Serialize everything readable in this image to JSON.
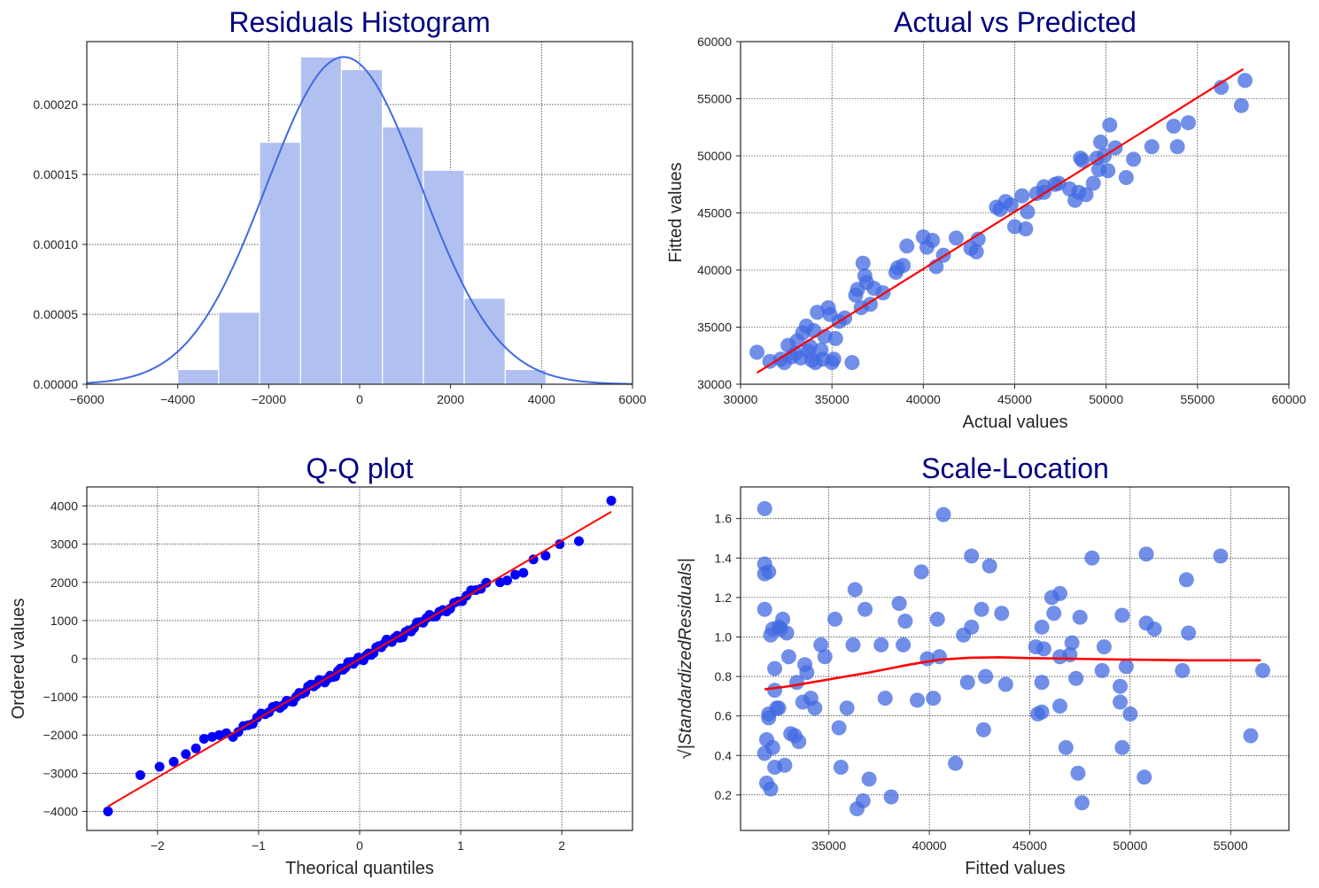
{
  "figure": {
    "title_color": "#000080",
    "scatter_color": "#4169e1",
    "qq_point_color": "#0000ff",
    "fit_line_color": "#ff0000"
  },
  "chart_data": [
    {
      "id": "hist",
      "type": "bar",
      "title": "Residuals Histogram",
      "xlabel": "",
      "ylabel": "",
      "xlim": [
        -6000,
        6000
      ],
      "ylim": [
        0,
        0.000245
      ],
      "xticks": [
        -6000,
        -4000,
        -2000,
        0,
        2000,
        4000,
        6000
      ],
      "xtick_labels": [
        "−6000",
        "−4000",
        "−2000",
        "0",
        "2000",
        "4000",
        "6000"
      ],
      "yticks": [
        0,
        5e-05,
        0.0001,
        0.00015,
        0.0002
      ],
      "ytick_labels": [
        "0.00000",
        "0.00005",
        "0.00010",
        "0.00015",
        "0.00020"
      ],
      "bin_edges": [
        -4000,
        -3100,
        -2200,
        -1300,
        -400,
        500,
        1400,
        2300,
        3200,
        4100
      ],
      "values": [
        1.05e-05,
        5.15e-05,
        0.000173,
        0.000234,
        0.000225,
        0.000184,
        0.000153,
        6.15e-05,
        1.05e-05
      ],
      "bar_color": "#b0c0f0",
      "kde": {
        "mean": -350,
        "sd": 1700,
        "peak": 0.000234,
        "color": "#4169e1"
      },
      "grid": true
    },
    {
      "id": "avp",
      "type": "scatter",
      "title": "Actual vs Predicted",
      "xlabel": "Actual values",
      "ylabel": "Fitted values",
      "xlim": [
        30000,
        60000
      ],
      "ylim": [
        30000,
        60000
      ],
      "xticks": [
        30000,
        35000,
        40000,
        45000,
        50000,
        55000,
        60000
      ],
      "xtick_labels": [
        "30000",
        "35000",
        "40000",
        "45000",
        "50000",
        "55000",
        "60000"
      ],
      "yticks": [
        30000,
        35000,
        40000,
        45000,
        50000,
        55000,
        60000
      ],
      "ytick_labels": [
        "30000",
        "35000",
        "40000",
        "45000",
        "50000",
        "55000",
        "60000"
      ],
      "points": [
        [
          30900,
          32800
        ],
        [
          31600,
          32000
        ],
        [
          32200,
          32200
        ],
        [
          32400,
          31900
        ],
        [
          32600,
          33400
        ],
        [
          32800,
          32400
        ],
        [
          33000,
          32700
        ],
        [
          33100,
          33800
        ],
        [
          33300,
          32300
        ],
        [
          33400,
          34500
        ],
        [
          33600,
          35100
        ],
        [
          33700,
          32900
        ],
        [
          33800,
          33300
        ],
        [
          33900,
          32100
        ],
        [
          34000,
          34700
        ],
        [
          34100,
          31900
        ],
        [
          34200,
          36300
        ],
        [
          34400,
          33000
        ],
        [
          34500,
          32200
        ],
        [
          34600,
          34200
        ],
        [
          34800,
          36700
        ],
        [
          34900,
          36100
        ],
        [
          35000,
          31900
        ],
        [
          35100,
          32200
        ],
        [
          35200,
          34000
        ],
        [
          35400,
          35500
        ],
        [
          35700,
          35800
        ],
        [
          36100,
          31900
        ],
        [
          36300,
          37800
        ],
        [
          36400,
          38300
        ],
        [
          36600,
          36700
        ],
        [
          36700,
          40600
        ],
        [
          36800,
          39500
        ],
        [
          36900,
          38900
        ],
        [
          37100,
          37000
        ],
        [
          37300,
          38400
        ],
        [
          37800,
          38000
        ],
        [
          38500,
          39800
        ],
        [
          38600,
          40200
        ],
        [
          38900,
          40400
        ],
        [
          39100,
          42100
        ],
        [
          40000,
          42900
        ],
        [
          40200,
          42000
        ],
        [
          40500,
          42600
        ],
        [
          40700,
          40300
        ],
        [
          41100,
          41300
        ],
        [
          41800,
          42800
        ],
        [
          42600,
          41900
        ],
        [
          42900,
          41600
        ],
        [
          43000,
          42700
        ],
        [
          44000,
          45500
        ],
        [
          44200,
          45300
        ],
        [
          44500,
          46000
        ],
        [
          44800,
          45700
        ],
        [
          45000,
          43800
        ],
        [
          45400,
          46500
        ],
        [
          45600,
          43600
        ],
        [
          45700,
          45100
        ],
        [
          46200,
          46700
        ],
        [
          46600,
          46800
        ],
        [
          46600,
          47300
        ],
        [
          47200,
          47500
        ],
        [
          47400,
          47600
        ],
        [
          48000,
          47100
        ],
        [
          48300,
          46100
        ],
        [
          48500,
          46800
        ],
        [
          48600,
          49800
        ],
        [
          48700,
          49600
        ],
        [
          48900,
          46600
        ],
        [
          49300,
          47600
        ],
        [
          49500,
          49800
        ],
        [
          49600,
          48800
        ],
        [
          49700,
          51200
        ],
        [
          49900,
          50000
        ],
        [
          50100,
          48700
        ],
        [
          50200,
          52700
        ],
        [
          50500,
          50700
        ],
        [
          51100,
          48100
        ],
        [
          51500,
          49700
        ],
        [
          52500,
          50800
        ],
        [
          53700,
          52600
        ],
        [
          53900,
          50800
        ],
        [
          54500,
          52900
        ],
        [
          56300,
          56000
        ],
        [
          57400,
          54400
        ],
        [
          57600,
          56600
        ]
      ],
      "fit_line": {
        "x": [
          30900,
          57500
        ],
        "y": [
          31000,
          57600
        ]
      },
      "grid": true
    },
    {
      "id": "qq",
      "type": "scatter",
      "title": "Q-Q plot",
      "xlabel": "Theorical quantiles",
      "ylabel": "Ordered values",
      "xlim": [
        -2.7,
        2.7
      ],
      "ylim": [
        -4500,
        4500
      ],
      "xticks": [
        -2,
        -1,
        0,
        1,
        2
      ],
      "xtick_labels": [
        "−2",
        "−1",
        "0",
        "1",
        "2"
      ],
      "yticks": [
        -4000,
        -3000,
        -2000,
        -1000,
        0,
        1000,
        2000,
        3000,
        4000
      ],
      "ytick_labels": [
        "−4000",
        "−3000",
        "−2000",
        "−1000",
        "0",
        "1000",
        "2000",
        "3000",
        "4000"
      ],
      "n_points": 100,
      "residual_quantile_fn": {
        "slope": 1550,
        "intercept": -10
      },
      "anchor_points": [
        [
          -2.49,
          -4000
        ],
        [
          -2.17,
          -3050
        ],
        [
          -1.98,
          -2830
        ],
        [
          -1.84,
          -2700
        ],
        [
          -1.72,
          -2500
        ],
        [
          -1.62,
          -2350
        ],
        [
          -1.54,
          -2100
        ],
        [
          -1.46,
          -2050
        ],
        [
          -1.39,
          -2000
        ],
        [
          -1.32,
          -1950
        ],
        [
          1.39,
          2000
        ],
        [
          1.46,
          2050
        ],
        [
          1.54,
          2200
        ],
        [
          1.62,
          2250
        ],
        [
          1.72,
          2600
        ],
        [
          1.84,
          2700
        ],
        [
          1.98,
          3000
        ],
        [
          2.17,
          3080
        ],
        [
          2.49,
          4140
        ]
      ],
      "fit_line": {
        "x": [
          -2.49,
          2.49
        ],
        "y": [
          -3870,
          3850
        ]
      },
      "grid": true
    },
    {
      "id": "scale",
      "type": "scatter",
      "title": "Scale-Location",
      "xlabel": "Fitted values",
      "ylabel": "√|StandardizedResiduals|",
      "xlim": [
        30600,
        57900
      ],
      "ylim": [
        0.02,
        1.76
      ],
      "xticks": [
        35000,
        40000,
        45000,
        50000,
        55000
      ],
      "xtick_labels": [
        "35000",
        "40000",
        "45000",
        "50000",
        "55000"
      ],
      "yticks": [
        0.2,
        0.4,
        0.6,
        0.8,
        1.0,
        1.2,
        1.4,
        1.6
      ],
      "ytick_labels": [
        "0.2",
        "0.4",
        "0.6",
        "0.8",
        "1.0",
        "1.2",
        "1.4",
        "1.6"
      ],
      "points": [
        [
          31800,
          1.65
        ],
        [
          31800,
          1.37
        ],
        [
          31800,
          1.32
        ],
        [
          32000,
          1.33
        ],
        [
          31800,
          1.14
        ],
        [
          31900,
          0.48
        ],
        [
          31800,
          0.41
        ],
        [
          31900,
          0.26
        ],
        [
          32000,
          0.59
        ],
        [
          32000,
          0.61
        ],
        [
          32100,
          0.23
        ],
        [
          32100,
          1.01
        ],
        [
          32200,
          1.04
        ],
        [
          32200,
          0.44
        ],
        [
          32300,
          0.84
        ],
        [
          32300,
          0.73
        ],
        [
          32400,
          0.64
        ],
        [
          32300,
          0.34
        ],
        [
          32500,
          1.05
        ],
        [
          32500,
          0.64
        ],
        [
          32600,
          1.04
        ],
        [
          32700,
          1.09
        ],
        [
          32800,
          0.35
        ],
        [
          32900,
          1.02
        ],
        [
          33000,
          0.9
        ],
        [
          33100,
          0.51
        ],
        [
          33300,
          0.5
        ],
        [
          33400,
          0.77
        ],
        [
          33500,
          0.47
        ],
        [
          33700,
          0.67
        ],
        [
          33800,
          0.86
        ],
        [
          33900,
          0.82
        ],
        [
          34100,
          0.69
        ],
        [
          34300,
          0.64
        ],
        [
          34600,
          0.96
        ],
        [
          34800,
          0.9
        ],
        [
          35300,
          1.09
        ],
        [
          35500,
          0.54
        ],
        [
          35600,
          0.34
        ],
        [
          35900,
          0.64
        ],
        [
          36200,
          0.96
        ],
        [
          36300,
          1.24
        ],
        [
          36400,
          0.13
        ],
        [
          36700,
          0.17
        ],
        [
          36800,
          1.14
        ],
        [
          37000,
          0.28
        ],
        [
          37600,
          0.96
        ],
        [
          37800,
          0.69
        ],
        [
          38100,
          0.19
        ],
        [
          38500,
          1.17
        ],
        [
          38700,
          0.96
        ],
        [
          38800,
          1.08
        ],
        [
          39400,
          0.68
        ],
        [
          39600,
          1.33
        ],
        [
          39900,
          0.89
        ],
        [
          40200,
          0.69
        ],
        [
          40400,
          1.09
        ],
        [
          40500,
          0.9
        ],
        [
          40700,
          1.62
        ],
        [
          41300,
          0.36
        ],
        [
          41700,
          1.01
        ],
        [
          41900,
          0.77
        ],
        [
          42100,
          1.05
        ],
        [
          42100,
          1.41
        ],
        [
          42600,
          1.14
        ],
        [
          42700,
          0.53
        ],
        [
          42800,
          0.8
        ],
        [
          43000,
          1.36
        ],
        [
          43600,
          1.12
        ],
        [
          43800,
          0.76
        ],
        [
          45300,
          0.95
        ],
        [
          45400,
          0.61
        ],
        [
          45600,
          0.62
        ],
        [
          45600,
          0.77
        ],
        [
          45600,
          1.05
        ],
        [
          45700,
          0.94
        ],
        [
          46100,
          1.2
        ],
        [
          46200,
          1.12
        ],
        [
          46500,
          1.22
        ],
        [
          46500,
          0.65
        ],
        [
          46500,
          0.9
        ],
        [
          46800,
          0.44
        ],
        [
          47000,
          0.91
        ],
        [
          47100,
          0.97
        ],
        [
          47300,
          0.79
        ],
        [
          47400,
          0.31
        ],
        [
          47500,
          1.1
        ],
        [
          47600,
          0.16
        ],
        [
          48100,
          1.4
        ],
        [
          48600,
          0.83
        ],
        [
          48700,
          0.95
        ],
        [
          49500,
          0.67
        ],
        [
          49500,
          0.75
        ],
        [
          49600,
          1.11
        ],
        [
          49600,
          0.44
        ],
        [
          49800,
          0.85
        ],
        [
          50000,
          0.61
        ],
        [
          50700,
          0.29
        ],
        [
          50800,
          1.42
        ],
        [
          50800,
          1.07
        ],
        [
          51200,
          1.04
        ],
        [
          52600,
          0.83
        ],
        [
          52800,
          1.29
        ],
        [
          52900,
          1.02
        ],
        [
          54500,
          1.41
        ],
        [
          56000,
          0.5
        ],
        [
          56600,
          0.83
        ]
      ],
      "trend_line": {
        "x": [
          31800,
          33000,
          35000,
          37000,
          39000,
          40500,
          42000,
          43500,
          45000,
          47000,
          50000,
          53000,
          56500
        ],
        "y": [
          0.735,
          0.75,
          0.785,
          0.82,
          0.86,
          0.885,
          0.895,
          0.897,
          0.893,
          0.89,
          0.885,
          0.882,
          0.882
        ]
      },
      "grid": true
    }
  ]
}
